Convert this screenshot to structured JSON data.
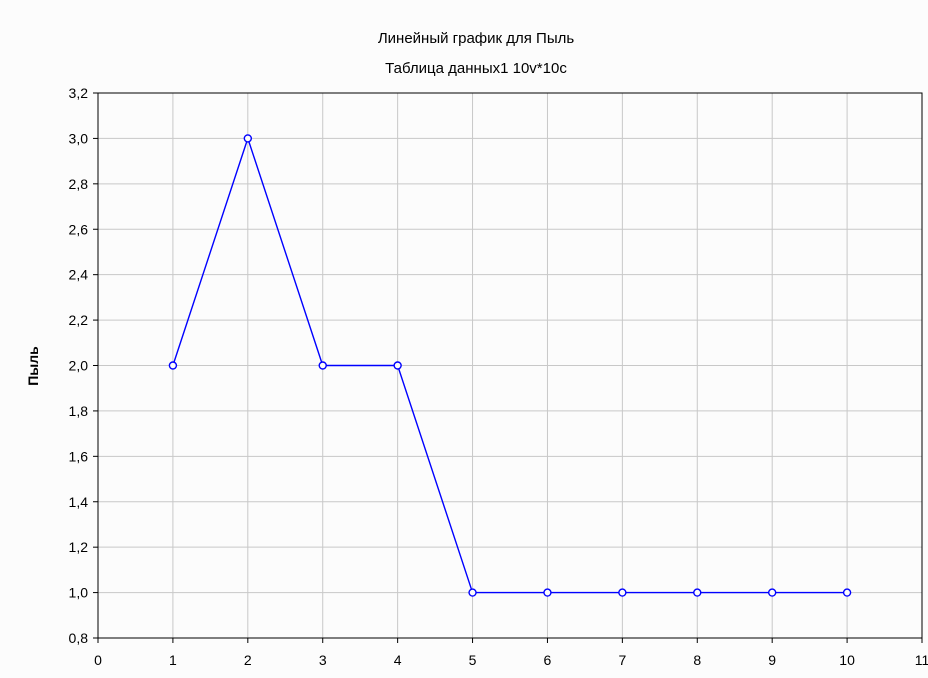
{
  "chart_data": {
    "type": "line",
    "title": "Линейный график для Пыль",
    "subtitle": "Таблица данных1 10v*10c",
    "xlabel": "",
    "ylabel": "Пыль",
    "x": [
      1,
      2,
      3,
      4,
      5,
      6,
      7,
      8,
      9,
      10
    ],
    "series": [
      {
        "values": [
          2.0,
          3.0,
          2.0,
          2.0,
          1.0,
          1.0,
          1.0,
          1.0,
          1.0,
          1.0
        ]
      }
    ],
    "xlim": [
      0,
      11
    ],
    "ylim": [
      0.8,
      3.2
    ],
    "x_ticks": [
      "0",
      "1",
      "2",
      "3",
      "4",
      "5",
      "6",
      "7",
      "8",
      "9",
      "10",
      "11"
    ],
    "y_ticks": [
      "0,8",
      "1,0",
      "1,2",
      "1,4",
      "1,6",
      "1,8",
      "2,0",
      "2,2",
      "2,4",
      "2,6",
      "2,8",
      "3,0",
      "3,2"
    ],
    "grid": true,
    "line_color": "#0000ff",
    "grid_color": "#c8c8c8"
  }
}
